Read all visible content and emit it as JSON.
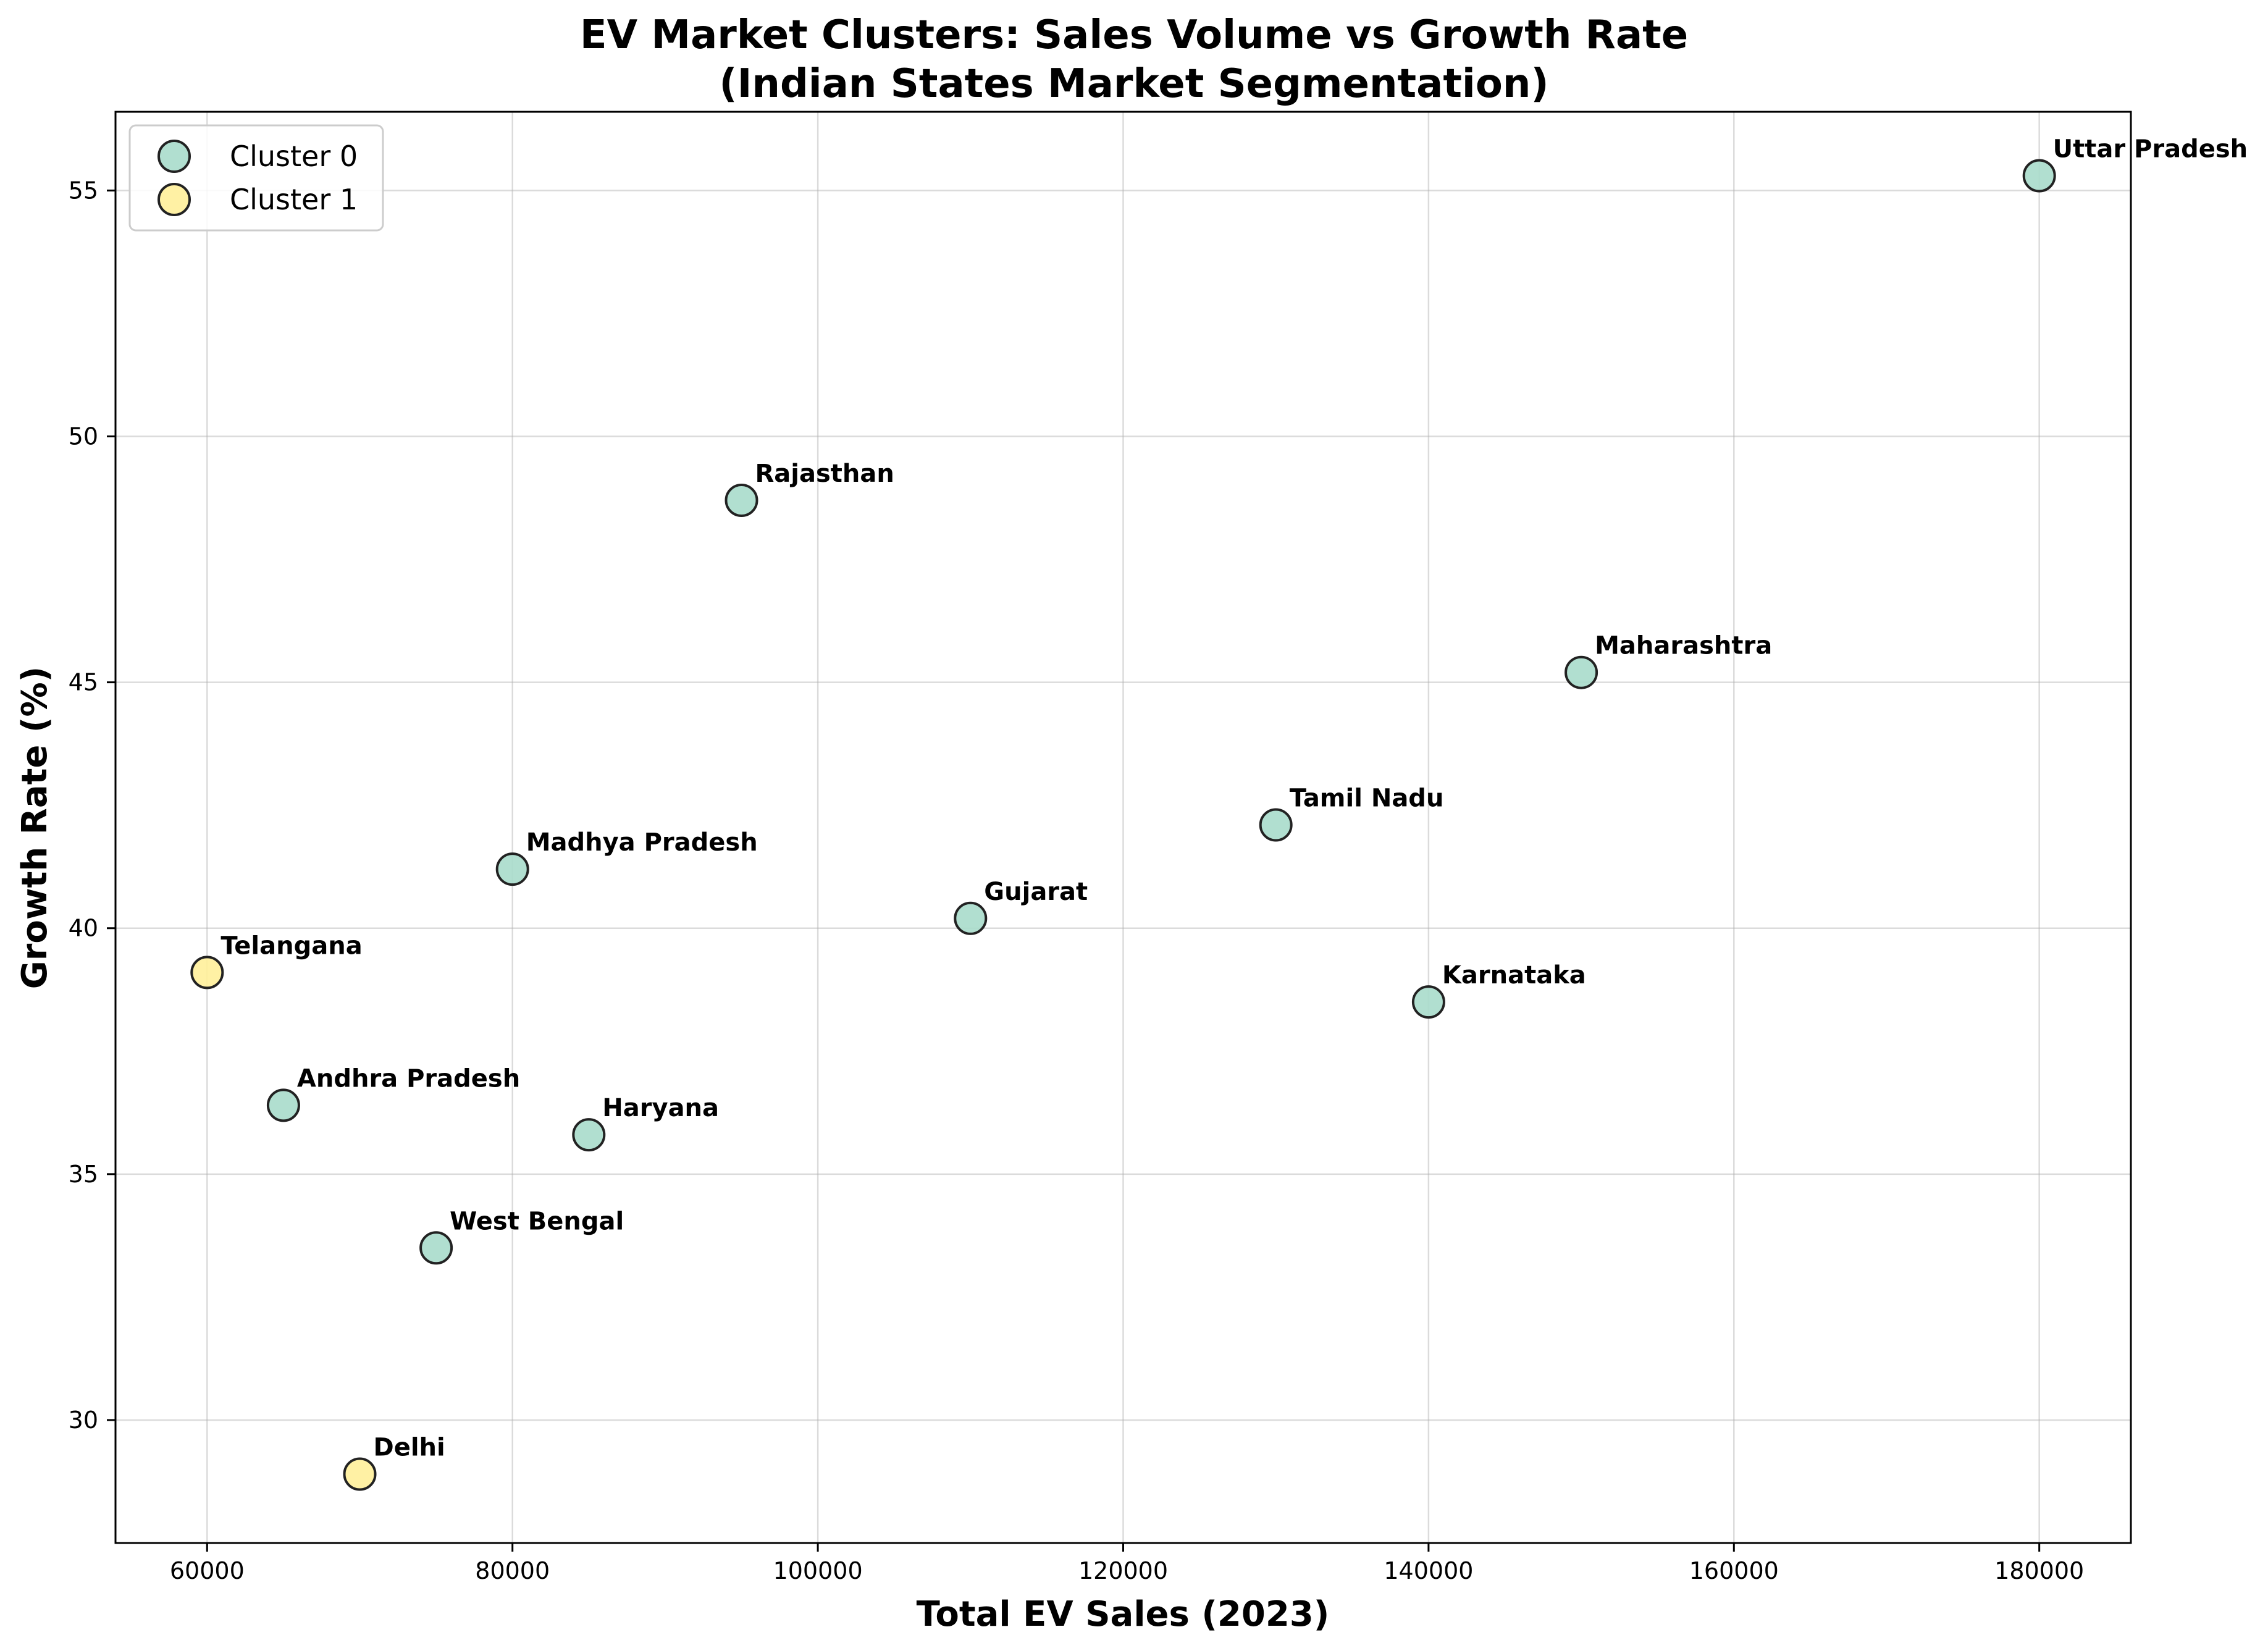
{
  "chart_data": {
    "type": "scatter",
    "title": "EV Market Clusters: Sales Volume vs Growth Rate",
    "subtitle": "(Indian States Market Segmentation)",
    "xlabel": "Total EV Sales (2023)",
    "ylabel": "Growth Rate (%)",
    "xlim": [
      54000,
      186000
    ],
    "ylim": [
      27.5,
      56.6
    ],
    "xticks": [
      60000,
      80000,
      100000,
      120000,
      140000,
      160000,
      180000
    ],
    "yticks": [
      30,
      35,
      40,
      45,
      50,
      55
    ],
    "grid": true,
    "legend_position": "top-left",
    "series": [
      {
        "name": "Cluster 0",
        "color": "#a8dccb",
        "points": [
          {
            "label": "Uttar Pradesh",
            "x": 180000,
            "y": 55.3
          },
          {
            "label": "Rajasthan",
            "x": 95000,
            "y": 48.7
          },
          {
            "label": "Maharashtra",
            "x": 150000,
            "y": 45.2
          },
          {
            "label": "Tamil Nadu",
            "x": 130000,
            "y": 42.1
          },
          {
            "label": "Madhya Pradesh",
            "x": 80000,
            "y": 41.2
          },
          {
            "label": "Gujarat",
            "x": 110000,
            "y": 40.2
          },
          {
            "label": "Karnataka",
            "x": 140000,
            "y": 38.5
          },
          {
            "label": "Andhra Pradesh",
            "x": 65000,
            "y": 36.4
          },
          {
            "label": "Haryana",
            "x": 85000,
            "y": 35.8
          },
          {
            "label": "West Bengal",
            "x": 75000,
            "y": 33.5
          }
        ]
      },
      {
        "name": "Cluster 1",
        "color": "#fff09a",
        "points": [
          {
            "label": "Telangana",
            "x": 60000,
            "y": 39.1
          },
          {
            "label": "Delhi",
            "x": 70000,
            "y": 28.9
          }
        ]
      }
    ]
  }
}
